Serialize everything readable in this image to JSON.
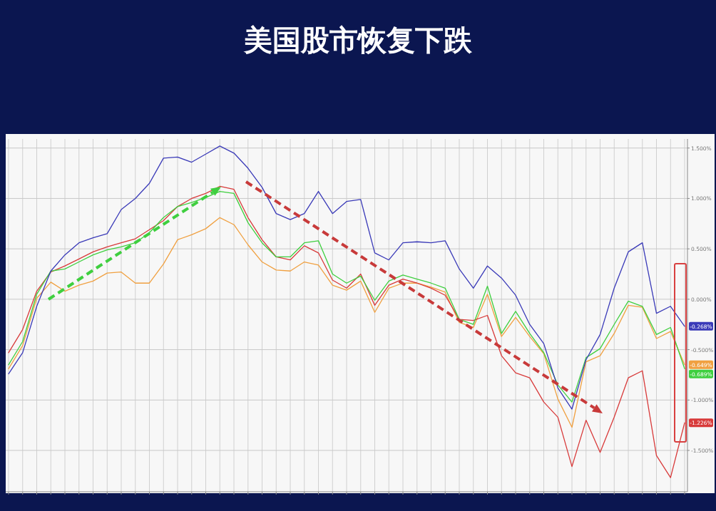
{
  "chart_data": {
    "type": "line",
    "title": "美国股市恢复下跌",
    "categories": [
      null,
      null,
      null,
      null,
      null,
      null,
      null,
      null,
      null,
      null,
      null,
      null,
      null,
      null,
      null,
      null,
      null,
      null,
      null,
      null,
      null,
      null,
      null,
      null,
      null,
      null,
      null,
      null,
      null,
      null,
      null,
      null,
      null,
      null,
      null,
      null,
      null,
      null,
      null,
      null,
      null,
      null,
      null,
      null,
      null,
      null,
      null,
      null,
      null
    ],
    "ylim": [
      -1.91,
      1.59
    ],
    "yticks": [
      {
        "value": 1.5,
        "label": "1.500%"
      },
      {
        "value": 1,
        "label": "1.000%"
      },
      {
        "value": 0.5,
        "label": "0.500%"
      },
      {
        "value": 0,
        "label": "0.000%"
      },
      {
        "value": -0.5,
        "label": "-0.500%"
      },
      {
        "value": -1,
        "label": "-1.000%"
      },
      {
        "value": -1.5,
        "label": "-1.500%"
      }
    ],
    "grid": true,
    "series": [
      {
        "color": "#f0a040",
        "values": [
          -0.69,
          -0.46,
          0.01,
          0.17,
          0.08,
          0.14,
          0.18,
          0.26,
          0.27,
          0.16,
          0.16,
          0.35,
          0.59,
          0.64,
          0.7,
          0.81,
          0.74,
          0.54,
          0.37,
          0.29,
          0.28,
          0.37,
          0.34,
          0.14,
          0.09,
          0.18,
          -0.13,
          0.11,
          0.16,
          0.16,
          0.12,
          0.07,
          -0.23,
          -0.28,
          0.05,
          -0.37,
          -0.18,
          -0.37,
          -0.54,
          -0.99,
          -1.27,
          -0.62,
          -0.56,
          -0.34,
          -0.06,
          -0.08,
          -0.39,
          -0.32,
          -0.649
        ],
        "value_labels": [
          null,
          null,
          null,
          null,
          null,
          null,
          null,
          null,
          null,
          null,
          null,
          null,
          null,
          null,
          null,
          null,
          null,
          null,
          null,
          null,
          null,
          null,
          null,
          null,
          null,
          null,
          null,
          null,
          null,
          null,
          null,
          null,
          null,
          null,
          null,
          null,
          null,
          null,
          null,
          null,
          null,
          null,
          null,
          null,
          null,
          null,
          null,
          null,
          "-0.649%"
        ]
      },
      {
        "color": "#d83a3a",
        "values": [
          -0.53,
          -0.3,
          0.08,
          0.27,
          0.33,
          0.4,
          0.47,
          0.52,
          0.56,
          0.6,
          0.69,
          0.78,
          0.92,
          1.0,
          1.05,
          1.12,
          1.09,
          0.81,
          0.59,
          0.42,
          0.39,
          0.53,
          0.46,
          0.19,
          0.11,
          0.25,
          -0.06,
          0.14,
          0.2,
          0.16,
          0.11,
          0.04,
          -0.2,
          -0.21,
          -0.16,
          -0.56,
          -0.73,
          -0.78,
          -1.02,
          -1.17,
          -1.66,
          -1.2,
          -1.52,
          -1.17,
          -0.78,
          -0.71,
          -1.55,
          -1.77,
          -1.226
        ],
        "value_labels": [
          null,
          null,
          null,
          null,
          null,
          null,
          null,
          null,
          null,
          null,
          null,
          null,
          null,
          null,
          null,
          null,
          null,
          null,
          null,
          null,
          null,
          null,
          null,
          null,
          null,
          null,
          null,
          null,
          null,
          null,
          null,
          null,
          null,
          null,
          null,
          null,
          null,
          null,
          null,
          null,
          null,
          null,
          null,
          null,
          null,
          null,
          null,
          null,
          "-1.226%"
        ]
      },
      {
        "color": "#3fcf3f",
        "values": [
          -0.65,
          -0.42,
          0.05,
          0.28,
          0.3,
          0.37,
          0.44,
          0.49,
          0.52,
          0.56,
          0.66,
          0.81,
          0.92,
          0.96,
          1.01,
          1.07,
          1.05,
          0.76,
          0.56,
          0.42,
          0.42,
          0.56,
          0.58,
          0.25,
          0.16,
          0.23,
          -0.01,
          0.18,
          0.24,
          0.2,
          0.16,
          0.11,
          -0.2,
          -0.25,
          0.13,
          -0.34,
          -0.12,
          -0.34,
          -0.53,
          -0.85,
          -1.02,
          -0.58,
          -0.49,
          -0.25,
          -0.02,
          -0.07,
          -0.35,
          -0.28,
          -0.689
        ],
        "value_labels": [
          null,
          null,
          null,
          null,
          null,
          null,
          null,
          null,
          null,
          null,
          null,
          null,
          null,
          null,
          null,
          null,
          null,
          null,
          null,
          null,
          null,
          null,
          null,
          null,
          null,
          null,
          null,
          null,
          null,
          null,
          null,
          null,
          null,
          null,
          null,
          null,
          null,
          null,
          null,
          null,
          null,
          null,
          null,
          null,
          null,
          null,
          null,
          null,
          "-0.689%"
        ]
      },
      {
        "color": "#3a3ab8",
        "values": [
          -0.74,
          -0.53,
          -0.07,
          0.28,
          0.44,
          0.56,
          0.61,
          0.65,
          0.89,
          1.0,
          1.15,
          1.4,
          1.41,
          1.36,
          1.44,
          1.52,
          1.45,
          1.3,
          1.11,
          0.85,
          0.79,
          0.85,
          1.07,
          0.85,
          0.97,
          0.99,
          0.46,
          0.39,
          0.56,
          0.57,
          0.56,
          0.58,
          0.3,
          0.11,
          0.33,
          0.21,
          0.04,
          -0.25,
          -0.44,
          -0.88,
          -1.09,
          -0.6,
          -0.35,
          0.11,
          0.47,
          0.56,
          -0.14,
          -0.07,
          -0.268
        ],
        "value_labels": [
          null,
          null,
          null,
          null,
          null,
          null,
          null,
          null,
          null,
          null,
          null,
          null,
          null,
          null,
          null,
          null,
          null,
          null,
          null,
          null,
          null,
          null,
          null,
          null,
          null,
          null,
          null,
          null,
          null,
          null,
          null,
          null,
          null,
          null,
          null,
          null,
          null,
          null,
          null,
          null,
          null,
          null,
          null,
          null,
          null,
          null,
          null,
          null,
          "-0.268%"
        ]
      }
    ]
  }
}
